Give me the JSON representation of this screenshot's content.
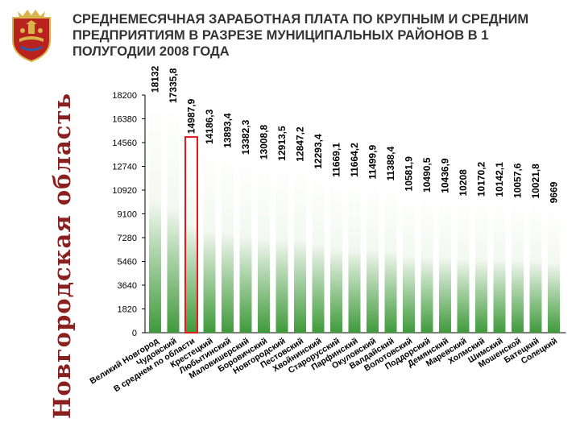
{
  "sidebar": {
    "text": "Новгородская область"
  },
  "page": {
    "title": "СРЕДНЕМЕСЯЧНАЯ ЗАРАБОТНАЯ ПЛАТА ПО КРУПНЫМ И СРЕДНИМ ПРЕДПРИЯТИЯМ В РАЗРЕЗЕ МУНИЦИПАЛЬНЫХ РАЙОНОВ В 1 ПОЛУГОДИИ 2008 ГОДА"
  },
  "colors": {
    "bar_top": "#ffffff",
    "bar_bottom": "#3f9a3b",
    "highlight_outline": "#e41b1b",
    "emblem_red": "#b8231f",
    "emblem_gold": "#d8b44a"
  },
  "chart_data": {
    "type": "bar",
    "title": "СРЕДНЕМЕСЯЧНАЯ ЗАРАБОТНАЯ ПЛАТА ПО КРУПНЫМ И СРЕДНИМ ПРЕДПРИЯТИЯМ В РАЗРЕЗЕ МУНИЦИПАЛЬНЫХ РАЙОНОВ В 1 ПОЛУГОДИИ 2008 ГОДА",
    "categories": [
      "Великий Новгород",
      "Чудовский",
      "В среднем по области",
      "Крестецкий",
      "Любытинский",
      "Маловишерский",
      "Боровичский",
      "Новгородский",
      "Пестовский",
      "Хвойнинский",
      "Старорусский",
      "Парфинский",
      "Окуловский",
      "Валдайский",
      "Волотовский",
      "Поддорский",
      "Демянский",
      "Маревский",
      "Холмский",
      "Шимский",
      "Мошенской",
      "Батецкий",
      "Солецкий"
    ],
    "values": [
      18132,
      17335.8,
      14987.9,
      14186.3,
      13893.4,
      13382.3,
      13008.8,
      12913.5,
      12847.2,
      12293.4,
      11669.1,
      11664.2,
      11499.9,
      11388.4,
      10581.9,
      10490.5,
      10436.9,
      10208,
      10170.2,
      10142.1,
      10057.6,
      10021.8,
      9669
    ],
    "value_labels": [
      "18132",
      "17335,8",
      "14987,9",
      "14186,3",
      "13893,4",
      "13382,3",
      "13008,8",
      "12913,5",
      "12847,2",
      "12293,4",
      "11669,1",
      "11664,2",
      "11499,9",
      "11388,4",
      "10581,9",
      "10490,5",
      "10436,9",
      "10208",
      "10170,2",
      "10142,1",
      "10057,6",
      "10021,8",
      "9669"
    ],
    "highlight_index": 2,
    "ylim": [
      0,
      18200
    ],
    "yticks": [
      0,
      1820,
      3640,
      5460,
      7280,
      9100,
      10920,
      12740,
      14560,
      16380,
      18200
    ],
    "grid": false,
    "legend": "none"
  }
}
